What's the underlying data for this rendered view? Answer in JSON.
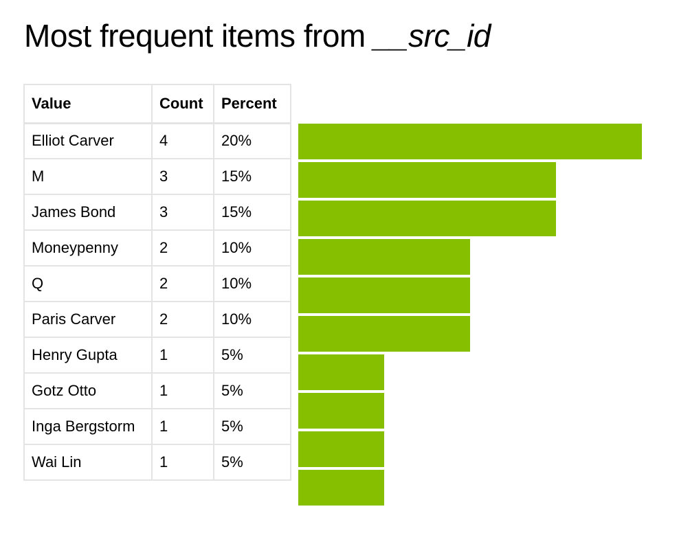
{
  "title": {
    "prefix": "Most frequent items from ",
    "field": "__src_id"
  },
  "table": {
    "headers": [
      "Value",
      "Count",
      "Percent"
    ],
    "rows": [
      {
        "value": "Elliot Carver",
        "count": "4",
        "percent": "20%"
      },
      {
        "value": "M",
        "count": "3",
        "percent": "15%"
      },
      {
        "value": "James Bond",
        "count": "3",
        "percent": "15%"
      },
      {
        "value": "Moneypenny",
        "count": "2",
        "percent": "10%"
      },
      {
        "value": "Q",
        "count": "2",
        "percent": "10%"
      },
      {
        "value": "Paris Carver",
        "count": "2",
        "percent": "10%"
      },
      {
        "value": "Henry Gupta",
        "count": "1",
        "percent": "5%"
      },
      {
        "value": "Gotz Otto",
        "count": "1",
        "percent": "5%"
      },
      {
        "value": "Inga Bergstorm",
        "count": "1",
        "percent": "5%"
      },
      {
        "value": "Wai Lin",
        "count": "1",
        "percent": "5%"
      }
    ]
  },
  "colors": {
    "bar": "#86bf00"
  },
  "chart_data": {
    "type": "bar",
    "orientation": "horizontal",
    "categories": [
      "Elliot Carver",
      "M",
      "James Bond",
      "Moneypenny",
      "Q",
      "Paris Carver",
      "Henry Gupta",
      "Gotz Otto",
      "Inga Bergstorm",
      "Wai Lin"
    ],
    "values": [
      4,
      3,
      3,
      2,
      2,
      2,
      1,
      1,
      1,
      1
    ],
    "percents": [
      20,
      15,
      15,
      10,
      10,
      10,
      5,
      5,
      5,
      5
    ],
    "xlim": [
      0,
      4
    ],
    "grid": false,
    "legend": "none"
  }
}
